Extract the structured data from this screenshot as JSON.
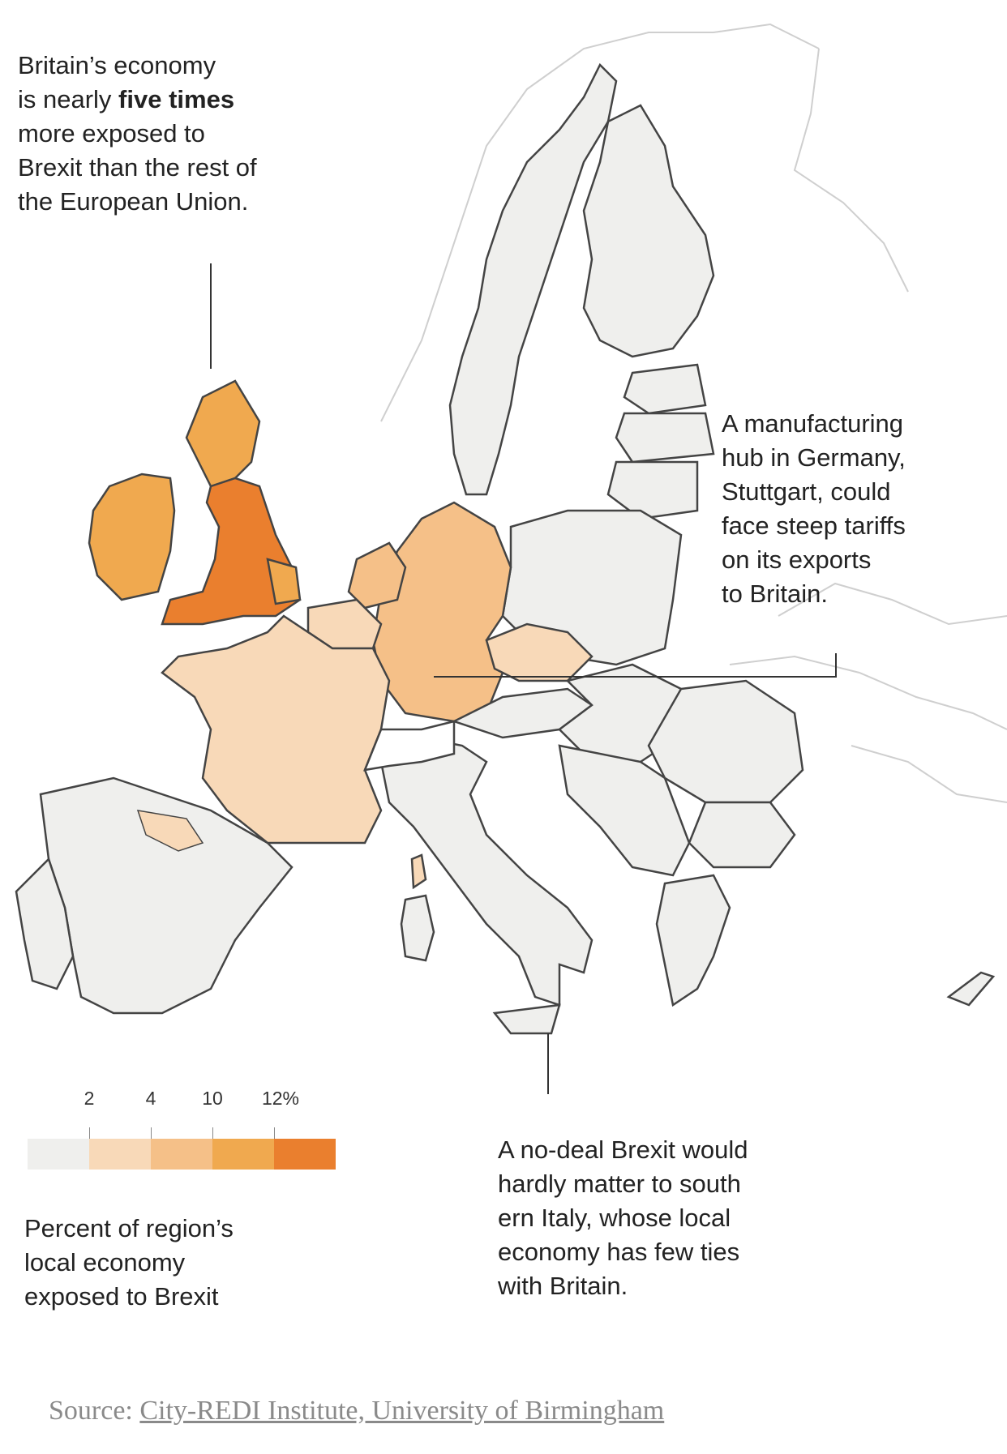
{
  "annotations": {
    "britain": {
      "line1": "Britain’s economy",
      "line2_pre": "is nearly ",
      "line2_bold": "five times",
      "line3": "more exposed to",
      "line4": "Brexit than the rest of",
      "line5": "the European Union."
    },
    "germany": {
      "lines": [
        "A manufacturing",
        "hub in Germany,",
        "Stuttgart, could",
        "face steep tariffs",
        "on its exports",
        "to Britain."
      ]
    },
    "italy": {
      "lines": [
        "A no-deal Brexit would",
        "hardly matter to south",
        "ern Italy, whose local",
        "economy has few ties",
        "with Britain."
      ]
    }
  },
  "legend": {
    "ticks": [
      "2",
      "4",
      "10",
      "12%"
    ],
    "colors": [
      "#efefed",
      "#f8d9b8",
      "#f5c088",
      "#f0a94f",
      "#ea7f2e"
    ],
    "title_lines": [
      "Percent of region’s",
      "local economy",
      "exposed to Brexit"
    ]
  },
  "source": {
    "prefix": "Source: ",
    "link": "City-REDI Institute, University of Birmingham"
  },
  "colors": {
    "background": "#ffffff",
    "land_low": "#efefed",
    "border": "#444444",
    "outline_outside": "#cccccc"
  }
}
